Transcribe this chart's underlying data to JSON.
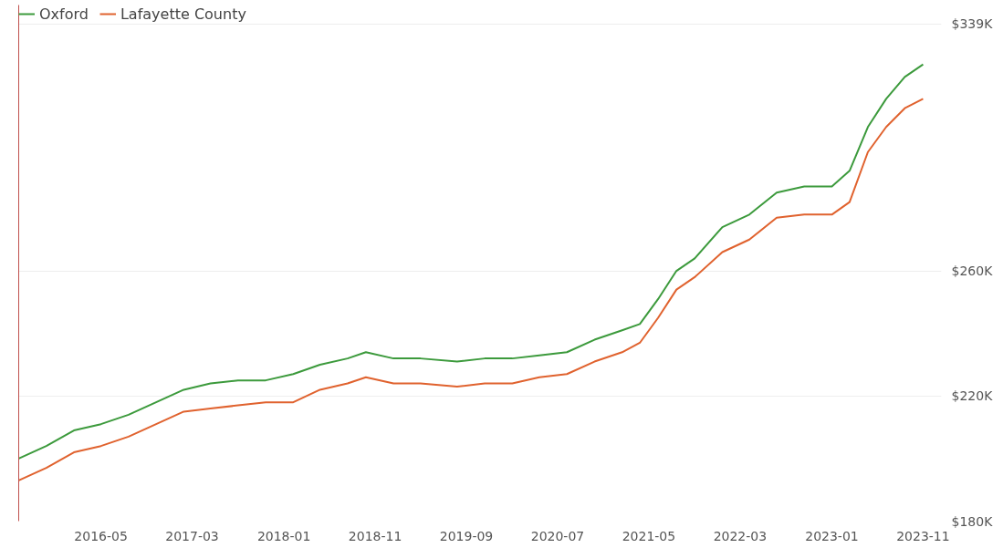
{
  "chart_data": {
    "type": "line",
    "x": [
      "2015-08",
      "2015-11",
      "2016-02",
      "2016-05",
      "2016-08",
      "2016-11",
      "2017-02",
      "2017-05",
      "2017-08",
      "2017-11",
      "2018-02",
      "2018-05",
      "2018-08",
      "2018-10",
      "2019-01",
      "2019-04",
      "2019-08",
      "2019-11",
      "2020-02",
      "2020-05",
      "2020-08",
      "2020-11",
      "2021-02",
      "2021-04",
      "2021-06",
      "2021-08",
      "2021-10",
      "2022-01",
      "2022-04",
      "2022-07",
      "2022-10",
      "2023-01",
      "2023-03",
      "2023-05",
      "2023-07",
      "2023-09",
      "2023-11"
    ],
    "series": [
      {
        "name": "Oxford",
        "color": "#3c9a3c",
        "values": [
          200,
          204,
          209,
          211,
          214,
          218,
          222,
          224,
          225,
          225,
          227,
          230,
          232,
          234,
          232,
          232,
          231,
          232,
          232,
          233,
          234,
          238,
          241,
          243,
          251,
          260,
          264,
          274,
          278,
          285,
          287,
          287,
          292,
          306,
          315,
          322,
          326
        ]
      },
      {
        "name": "Lafayette County",
        "color": "#e0622e",
        "values": [
          193,
          197,
          202,
          204,
          207,
          211,
          215,
          216,
          217,
          218,
          218,
          222,
          224,
          226,
          224,
          224,
          223,
          224,
          224,
          226,
          227,
          231,
          234,
          237,
          245,
          254,
          258,
          266,
          270,
          277,
          278,
          278,
          282,
          298,
          306,
          312,
          315
        ]
      }
    ],
    "xlim": [
      "2015-08",
      "2024-01"
    ],
    "xticks": [
      "2016-05",
      "2017-03",
      "2018-01",
      "2018-11",
      "2019-09",
      "2020-07",
      "2021-05",
      "2022-03",
      "2023-01",
      "2023-11"
    ],
    "ylim": [
      180,
      345
    ],
    "yticks": [
      {
        "value": 180,
        "label": "$180K"
      },
      {
        "value": 220,
        "label": "$220K"
      },
      {
        "value": 260,
        "label": "$260K"
      },
      {
        "value": 339,
        "label": "$339K"
      }
    ],
    "grid": "y",
    "legend": "top left"
  }
}
